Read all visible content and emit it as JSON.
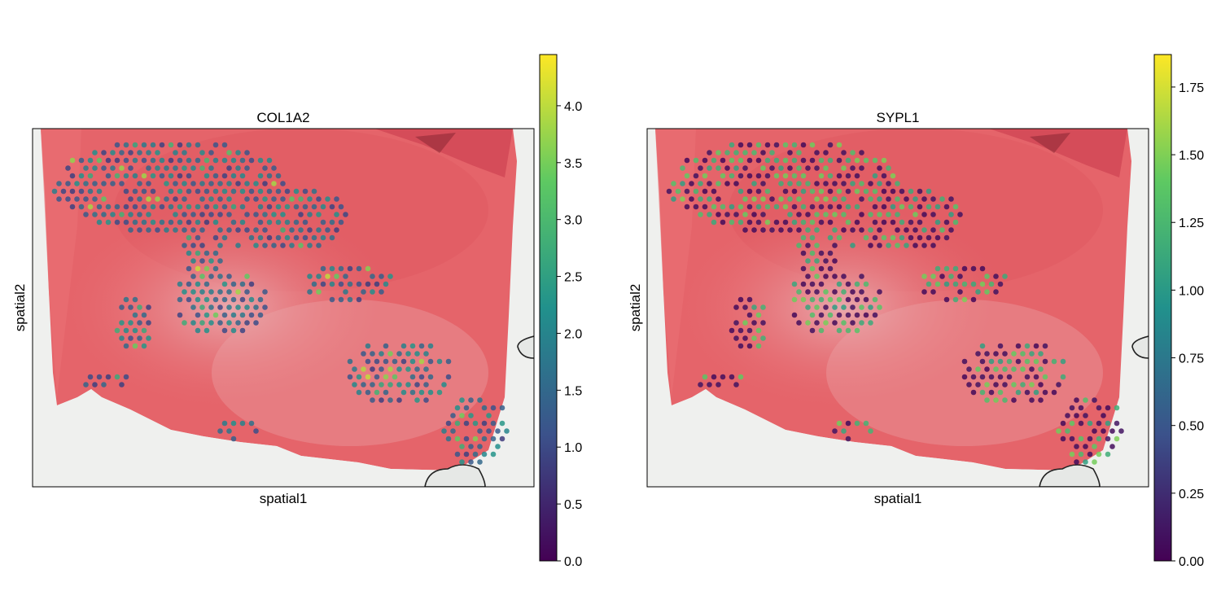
{
  "chart_data": [
    {
      "type": "scatter",
      "subtype": "spatial-expression-over-tissue-image",
      "title": "COL1A2",
      "xlabel": "spatial1",
      "ylabel": "spatial2",
      "xticks_shown": false,
      "yticks_shown": false,
      "grid": false,
      "colormap": "viridis",
      "colorbar": {
        "range": [
          0,
          4.45
        ],
        "ticks": [
          0.0,
          0.5,
          1.0,
          1.5,
          2.0,
          2.5,
          3.0,
          3.5,
          4.0
        ],
        "tick_labels": [
          "0.0",
          "0.5",
          "1.0",
          "1.5",
          "2.0",
          "2.5",
          "3.0",
          "3.5",
          "4.0"
        ]
      }
    },
    {
      "type": "scatter",
      "subtype": "spatial-expression-over-tissue-image",
      "title": "SYPL1",
      "xlabel": "spatial1",
      "ylabel": "spatial2",
      "xticks_shown": false,
      "yticks_shown": false,
      "grid": false,
      "colormap": "viridis",
      "colorbar": {
        "range": [
          0,
          1.87
        ],
        "ticks": [
          0.0,
          0.25,
          0.5,
          0.75,
          1.0,
          1.25,
          1.5,
          1.75
        ],
        "tick_labels": [
          "0.00",
          "0.25",
          "0.50",
          "0.75",
          "1.00",
          "1.25",
          "1.50",
          "1.75"
        ]
      }
    }
  ],
  "colors": {
    "tissue_base": "#e5646a",
    "tissue_dark": "#c9384a",
    "tissue_pale": "#eaa8ad",
    "background_slide": "#eff0ee",
    "viridis": [
      "#440154",
      "#3b528b",
      "#21918c",
      "#5ec962",
      "#fde725"
    ]
  }
}
